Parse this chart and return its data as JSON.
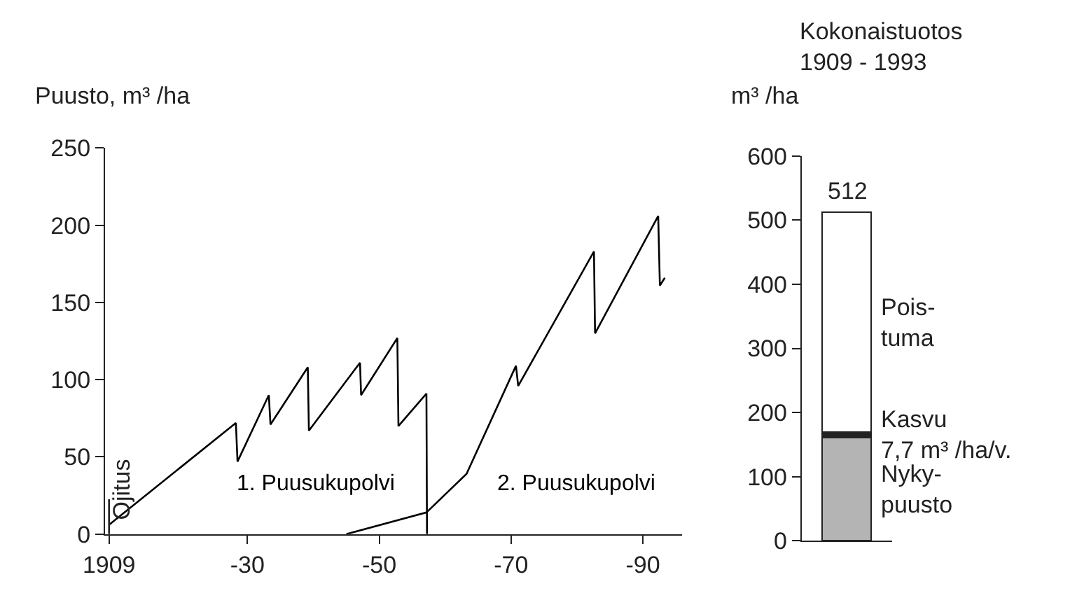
{
  "chart_data": [
    {
      "type": "line",
      "ylabel": "Puusto, m³ /ha",
      "series": [
        {
          "name": "1. Puusukupolvi",
          "color": "#000000",
          "x": [
            "1909-01",
            "1928-04",
            "1928-07",
            "1933-04",
            "1933-07",
            "1939-03",
            "1939-05",
            "1947-02",
            "1947-04",
            "1952-10",
            "1952-12",
            "1957-03",
            "1957-04"
          ],
          "values": [
            6,
            72,
            47,
            90,
            71,
            108,
            67,
            111,
            90,
            127,
            70,
            91,
            0
          ]
        },
        {
          "name": "2. Puusukupolvi",
          "color": "#000000",
          "x": [
            "1945-01",
            "1957-03",
            "1963-04",
            "1970-10",
            "1971-02",
            "1982-08",
            "1982-10",
            "1992-05",
            "1992-08",
            "1993-05"
          ],
          "values": [
            0,
            14,
            39,
            109,
            96,
            183,
            130,
            206,
            161,
            166
          ]
        }
      ],
      "ref_lines": [
        {
          "axis": "x",
          "value": "1909-01",
          "label": "Ojitus"
        }
      ],
      "xlim": [
        "1908-06",
        "1996-01"
      ],
      "xticks": [
        {
          "value": "1909",
          "label": "1909"
        },
        {
          "value": "1930",
          "label": "-30"
        },
        {
          "value": "1950",
          "label": "-50"
        },
        {
          "value": "1970",
          "label": "-70"
        },
        {
          "value": "1990",
          "label": "-90"
        }
      ],
      "ylim": [
        0,
        250
      ],
      "yticks": [
        0,
        50,
        100,
        150,
        200,
        250
      ],
      "marker": "none",
      "line_style": "solid"
    },
    {
      "type": "bar",
      "stacked": true,
      "title": "Kokonaistuotos\n1909 - 1993",
      "ylabel": "m³ /ha",
      "categories": [
        null
      ],
      "series": [
        {
          "name": "Nyky-\npuusto",
          "color": "#b4b4b4",
          "values": [
            161
          ]
        },
        {
          "name": "Kasvu\n7,7 m³ /ha/v.",
          "color": "#222222",
          "values": [
            9
          ]
        },
        {
          "name": "Pois-\ntuma",
          "color": "#ffffff",
          "values": [
            342
          ]
        }
      ],
      "totals": [
        "512"
      ],
      "ylim": [
        0,
        600
      ],
      "yticks": [
        0,
        100,
        200,
        300,
        400,
        500,
        600
      ]
    }
  ]
}
